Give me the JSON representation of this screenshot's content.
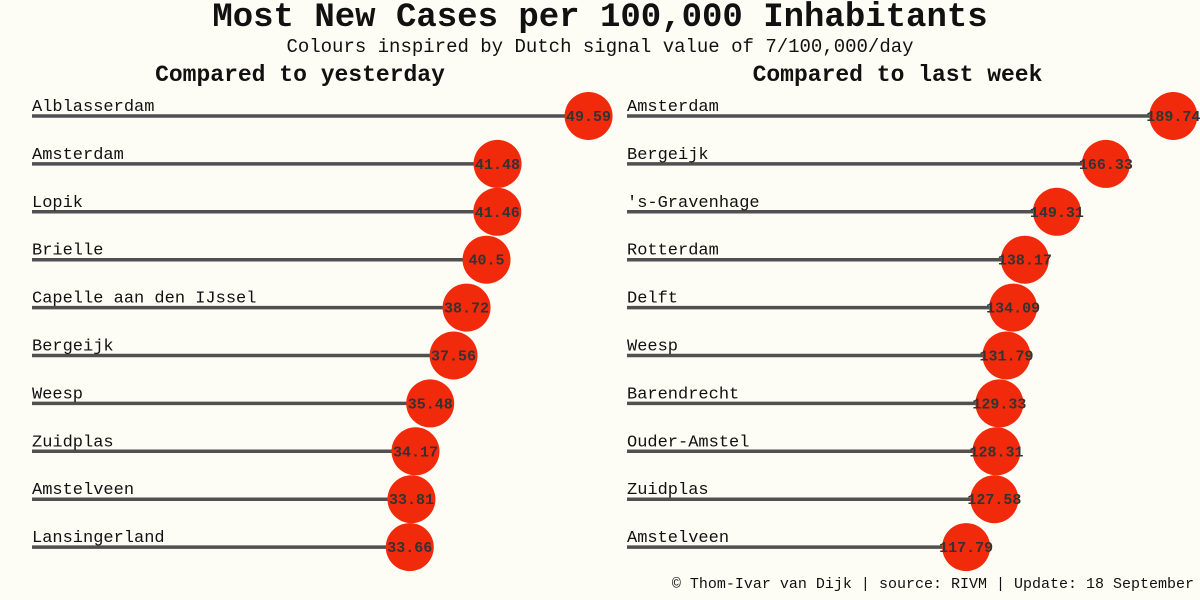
{
  "title": "Most New Cases per 100,000 Inhabitants",
  "subtitle": "Colours inspired by Dutch signal value of 7/100,000/day",
  "footer": "© Thom-Ivar van Dijk | source: RIVM | Update: 18 September",
  "colors": {
    "dot": "#f22a0c",
    "bar": "#505050",
    "background": "#fdfdf6"
  },
  "chart_data": [
    {
      "type": "bar",
      "title": "Compared to yesterday",
      "xlabel": "",
      "ylabel": "",
      "grid": false,
      "xlim": [
        0,
        51.5
      ],
      "categories": [
        "Alblasserdam",
        "Amsterdam",
        "Lopik",
        "Brielle",
        "Capelle aan den IJssel",
        "Bergeijk",
        "Weesp",
        "Zuidplas",
        "Amstelveen",
        "Lansingerland"
      ],
      "values": [
        49.59,
        41.48,
        41.46,
        40.5,
        38.72,
        37.56,
        35.48,
        34.17,
        33.81,
        33.66
      ],
      "value_labels": [
        "49.59",
        "41.48",
        "41.46",
        "40.5",
        "38.72",
        "37.56",
        "35.48",
        "34.17",
        "33.81",
        "33.66"
      ]
    },
    {
      "type": "bar",
      "title": "Compared to last week",
      "xlabel": "",
      "ylabel": "",
      "grid": false,
      "xlim": [
        0,
        199
      ],
      "categories": [
        "Amsterdam",
        "Bergeijk",
        "'s-Gravenhage",
        "Rotterdam",
        "Delft",
        "Weesp",
        "Barendrecht",
        "Ouder-Amstel",
        "Zuidplas",
        "Amstelveen"
      ],
      "values": [
        189.74,
        166.33,
        149.31,
        138.17,
        134.09,
        131.79,
        129.33,
        128.31,
        127.58,
        117.79
      ],
      "value_labels": [
        "189.74",
        "166.33",
        "149.31",
        "138.17",
        "134.09",
        "131.79",
        "129.33",
        "128.31",
        "127.58",
        "117.79"
      ]
    }
  ]
}
